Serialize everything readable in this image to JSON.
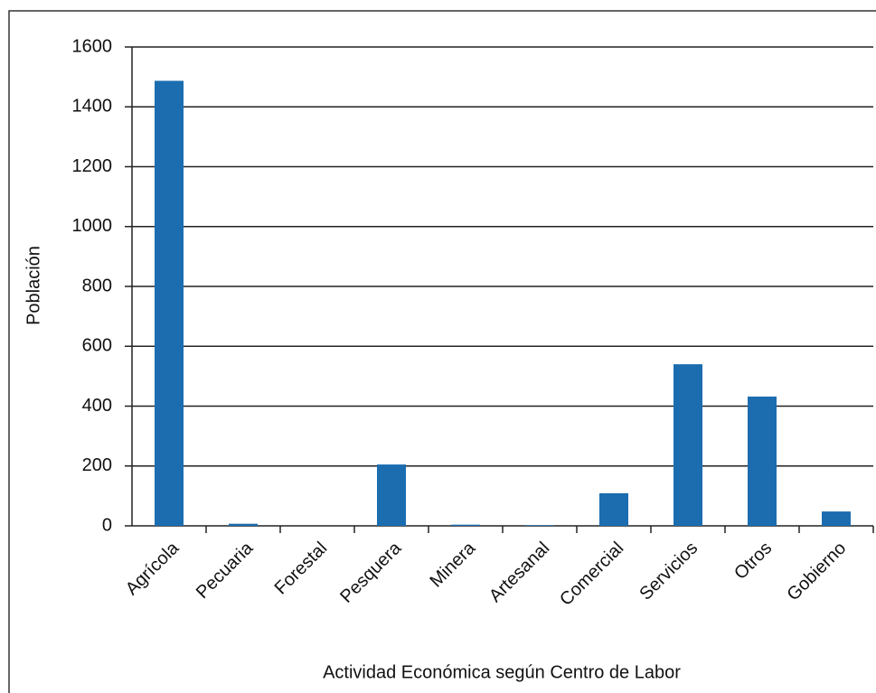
{
  "chart_data": {
    "type": "bar",
    "x_label": "Actividad Económica según Centro de Labor",
    "y_label": "Población",
    "categories": [
      "Agrícola",
      "Pecuaria",
      "Forestal",
      "Pesquera",
      "Minera",
      "Artesanal",
      "Comercial",
      "Servicios",
      "Otros",
      "Gobierno"
    ],
    "values": [
      1487,
      7,
      0,
      205,
      4,
      2,
      109,
      540,
      432,
      48
    ],
    "color": "#1b6db0",
    "ylim": [
      0,
      1600
    ],
    "yticks": [
      0,
      200,
      400,
      600,
      800,
      1000,
      1200,
      1400,
      1600
    ],
    "grid": true
  }
}
